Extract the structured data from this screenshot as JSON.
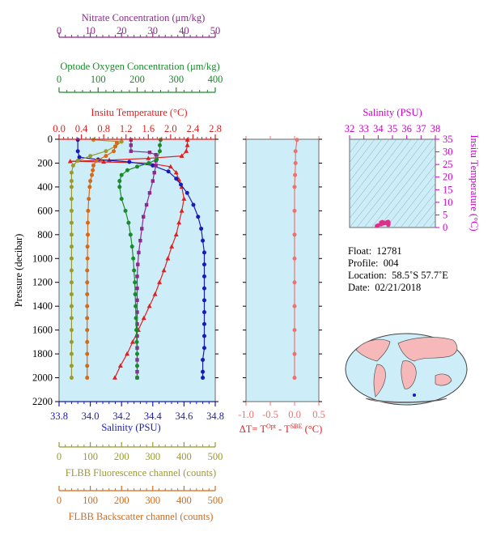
{
  "colors": {
    "nitrate": "#8b2a8b",
    "oxygen": "#1a8a2a",
    "temperature": "#e02020",
    "salinity": "#1a1ab8",
    "fluorescence": "#9a9a30",
    "backscatter": "#d46a1a",
    "delta": "#f07070",
    "panel_bg": "#cdeef8",
    "land": "#f6b8b8"
  },
  "axes": {
    "nitrate": {
      "label": "Nitrate Concentration (μm/kg)",
      "ticks": [
        "0",
        "10",
        "20",
        "30",
        "40",
        "50"
      ],
      "range": [
        0,
        50
      ]
    },
    "oxygen": {
      "label": "Optode Oxygen Concentration (μm/kg)",
      "ticks": [
        "0",
        "100",
        "200",
        "300",
        "400"
      ],
      "range": [
        0,
        400
      ]
    },
    "temperature": {
      "label": "Insitu Temperature (°C)",
      "ticks": [
        "0.0",
        "0.4",
        "0.8",
        "1.2",
        "1.6",
        "2.0",
        "2.4",
        "2.8"
      ],
      "range": [
        0,
        2.8
      ]
    },
    "salinity": {
      "label": "Salinity (PSU)",
      "ticks": [
        "33.8",
        "34.0",
        "34.2",
        "34.4",
        "34.6",
        "34.8"
      ],
      "range": [
        33.8,
        34.8
      ]
    },
    "pressure": {
      "label": "Pressure (decibar)",
      "ticks": [
        "0",
        "200",
        "400",
        "600",
        "800",
        "1000",
        "1200",
        "1400",
        "1600",
        "1800",
        "2000",
        "2200"
      ],
      "range": [
        0,
        2200
      ]
    },
    "fluorescence": {
      "label": "FLBB Fluorescence channel (counts)",
      "ticks": [
        "0",
        "100",
        "200",
        "300",
        "400",
        "500"
      ],
      "range": [
        0,
        500
      ]
    },
    "backscatter": {
      "label": "FLBB Backscatter channel (counts)",
      "ticks": [
        "0",
        "100",
        "200",
        "300",
        "400",
        "500"
      ],
      "range": [
        0,
        500
      ]
    },
    "delta": {
      "label_main": "ΔT= T",
      "label_sup1": "Opt",
      "label_mid": " - T",
      "label_sup2": "SBE",
      "label_end": " (°C)",
      "ticks": [
        "-1.0",
        "-0.5",
        "0.0",
        "0.5"
      ],
      "range": [
        -1.0,
        0.5
      ]
    },
    "ts_salinity": {
      "label": "Salinity (PSU)",
      "ticks": [
        "32",
        "33",
        "34",
        "35",
        "36",
        "37",
        "38"
      ],
      "range": [
        32,
        38
      ]
    },
    "ts_temperature": {
      "label": "Insitu Temperature (°C)",
      "ticks": [
        "0",
        "5",
        "10",
        "15",
        "20",
        "25",
        "30",
        "35"
      ],
      "range": [
        0,
        35
      ]
    }
  },
  "info": {
    "float_label": "Float:",
    "float_value": "12781",
    "profile_label": "Profile:",
    "profile_value": "004",
    "location_label": "Location:",
    "location_value": "58.5˚S  57.7˚E",
    "date_label": "Date:",
    "date_value": "02/21/2018"
  },
  "chart_data": [
    {
      "type": "line",
      "name": "main-profile",
      "y_axis": "pressure",
      "series": [
        {
          "key": "temperature",
          "marker": "triangle",
          "points": [
            [
              2.3,
              5
            ],
            [
              2.3,
              50
            ],
            [
              2.28,
              100
            ],
            [
              2.2,
              140
            ],
            [
              1.6,
              160
            ],
            [
              0.9,
              175
            ],
            [
              0.2,
              185
            ],
            [
              0.8,
              190
            ],
            [
              1.6,
              200
            ],
            [
              2.0,
              230
            ],
            [
              2.1,
              280
            ],
            [
              2.15,
              340
            ],
            [
              2.2,
              400
            ],
            [
              2.24,
              500
            ],
            [
              2.2,
              600
            ],
            [
              2.15,
              700
            ],
            [
              2.1,
              800
            ],
            [
              2.02,
              900
            ],
            [
              1.95,
              1000
            ],
            [
              1.88,
              1100
            ],
            [
              1.8,
              1200
            ],
            [
              1.72,
              1300
            ],
            [
              1.62,
              1400
            ],
            [
              1.52,
              1500
            ],
            [
              1.42,
              1600
            ],
            [
              1.32,
              1700
            ],
            [
              1.22,
              1800
            ],
            [
              1.1,
              1900
            ],
            [
              1.0,
              2000
            ]
          ]
        },
        {
          "key": "salinity",
          "marker": "circle",
          "points": [
            [
              33.92,
              5
            ],
            [
              33.92,
              100
            ],
            [
              33.93,
              150
            ],
            [
              34.05,
              170
            ],
            [
              34.25,
              190
            ],
            [
              34.4,
              220
            ],
            [
              34.5,
              270
            ],
            [
              34.55,
              330
            ],
            [
              34.58,
              380
            ],
            [
              34.62,
              450
            ],
            [
              34.66,
              550
            ],
            [
              34.69,
              650
            ],
            [
              34.71,
              750
            ],
            [
              34.72,
              850
            ],
            [
              34.73,
              950
            ],
            [
              34.73,
              1050
            ],
            [
              34.73,
              1150
            ],
            [
              34.73,
              1250
            ],
            [
              34.73,
              1350
            ],
            [
              34.73,
              1450
            ],
            [
              34.73,
              1550
            ],
            [
              34.73,
              1650
            ],
            [
              34.73,
              1750
            ],
            [
              34.72,
              1850
            ],
            [
              34.72,
              1950
            ],
            [
              34.72,
              2000
            ]
          ]
        },
        {
          "key": "nitrate",
          "marker": "square",
          "points": [
            [
              23,
              5
            ],
            [
              23,
              50
            ],
            [
              23,
              100
            ],
            [
              29,
              110
            ],
            [
              31,
              130
            ],
            [
              31,
              180
            ],
            [
              31,
              220
            ],
            [
              30.5,
              280
            ],
            [
              30,
              350
            ],
            [
              29,
              450
            ],
            [
              28,
              550
            ],
            [
              27,
              650
            ],
            [
              26.5,
              750
            ],
            [
              26,
              850
            ],
            [
              25.5,
              950
            ],
            [
              25.2,
              1050
            ],
            [
              25,
              1150
            ],
            [
              25,
              1250
            ],
            [
              25,
              1350
            ],
            [
              25,
              1450
            ],
            [
              25,
              1550
            ],
            [
              25,
              1650
            ],
            [
              25,
              1750
            ],
            [
              25,
              1850
            ],
            [
              25,
              1950
            ],
            [
              25,
              2000
            ]
          ]
        },
        {
          "key": "oxygen",
          "marker": "circle",
          "points": [
            [
              260,
              5
            ],
            [
              258,
              50
            ],
            [
              258,
              100
            ],
            [
              250,
              170
            ],
            [
              230,
              200
            ],
            [
              200,
              230
            ],
            [
              175,
              260
            ],
            [
              160,
              300
            ],
            [
              155,
              350
            ],
            [
              155,
              400
            ],
            [
              160,
              500
            ],
            [
              170,
              600
            ],
            [
              178,
              700
            ],
            [
              183,
              800
            ],
            [
              187,
              900
            ],
            [
              190,
              1000
            ],
            [
              192,
              1100
            ],
            [
              194,
              1200
            ],
            [
              195,
              1300
            ],
            [
              196,
              1400
            ],
            [
              197,
              1500
            ],
            [
              198,
              1600
            ],
            [
              199,
              1700
            ],
            [
              200,
              1800
            ],
            [
              200,
              1900
            ],
            [
              200,
              2000
            ]
          ]
        },
        {
          "key": "fluorescence",
          "marker": "circle",
          "points": [
            [
              110,
              5
            ],
            [
              200,
              20
            ],
            [
              180,
              60
            ],
            [
              150,
              100
            ],
            [
              100,
              140
            ],
            [
              60,
              180
            ],
            [
              45,
              220
            ],
            [
              40,
              280
            ],
            [
              40,
              350
            ],
            [
              40,
              400
            ],
            [
              40,
              500
            ],
            [
              40,
              600
            ],
            [
              40,
              700
            ],
            [
              40,
              800
            ],
            [
              40,
              900
            ],
            [
              40,
              1000
            ],
            [
              40,
              1100
            ],
            [
              40,
              1200
            ],
            [
              40,
              1300
            ],
            [
              40,
              1400
            ],
            [
              40,
              1500
            ],
            [
              40,
              1600
            ],
            [
              40,
              1700
            ],
            [
              40,
              1800
            ],
            [
              40,
              1900
            ],
            [
              40,
              2000
            ]
          ]
        },
        {
          "key": "backscatter",
          "marker": "circle",
          "points": [
            [
              185,
              30
            ],
            [
              180,
              60
            ],
            [
              175,
              100
            ],
            [
              150,
              140
            ],
            [
              120,
              180
            ],
            [
              110,
              220
            ],
            [
              108,
              260
            ],
            [
              105,
              300
            ],
            [
              100,
              350
            ],
            [
              98,
              400
            ],
            [
              95,
              500
            ],
            [
              93,
              600
            ],
            [
              92,
              700
            ],
            [
              92,
              800
            ],
            [
              91,
              900
            ],
            [
              91,
              1000
            ],
            [
              90,
              1100
            ],
            [
              90,
              1200
            ],
            [
              90,
              1300
            ],
            [
              90,
              1400
            ],
            [
              90,
              1500
            ],
            [
              90,
              1600
            ],
            [
              90,
              1700
            ],
            [
              90,
              1800
            ],
            [
              90,
              1900
            ],
            [
              90,
              2000
            ]
          ]
        }
      ]
    },
    {
      "type": "line",
      "name": "delta-t",
      "x_axis": "delta",
      "y_axis": "pressure",
      "series": [
        {
          "key": "delta",
          "marker": "circle",
          "points": [
            [
              0.05,
              5
            ],
            [
              0.02,
              100
            ],
            [
              0.02,
              200
            ],
            [
              0.01,
              300
            ],
            [
              0.0,
              400
            ],
            [
              0.0,
              600
            ],
            [
              0.0,
              800
            ],
            [
              0.0,
              1000
            ],
            [
              0.0,
              1200
            ],
            [
              0.0,
              1400
            ],
            [
              0.0,
              1600
            ],
            [
              0.0,
              1800
            ],
            [
              0.0,
              2000
            ]
          ]
        }
      ]
    },
    {
      "type": "scatter",
      "name": "ts-diagram",
      "x_axis": "ts_salinity",
      "y_axis": "ts_temperature",
      "series": [
        {
          "key": "salinity_temperature",
          "marker": "circle",
          "points": [
            [
              33.9,
              0.6
            ],
            [
              34.0,
              0.9
            ],
            [
              34.2,
              1.2
            ],
            [
              34.4,
              1.6
            ],
            [
              34.5,
              1.9
            ],
            [
              34.6,
              2.1
            ],
            [
              34.7,
              2.3
            ],
            [
              34.73,
              2.0
            ],
            [
              34.73,
              1.5
            ],
            [
              34.72,
              1.2
            ],
            [
              34.71,
              1.0
            ],
            [
              34.3,
              2.2
            ],
            [
              34.2,
              2.0
            ],
            [
              34.6,
              1.7
            ]
          ]
        }
      ]
    }
  ]
}
